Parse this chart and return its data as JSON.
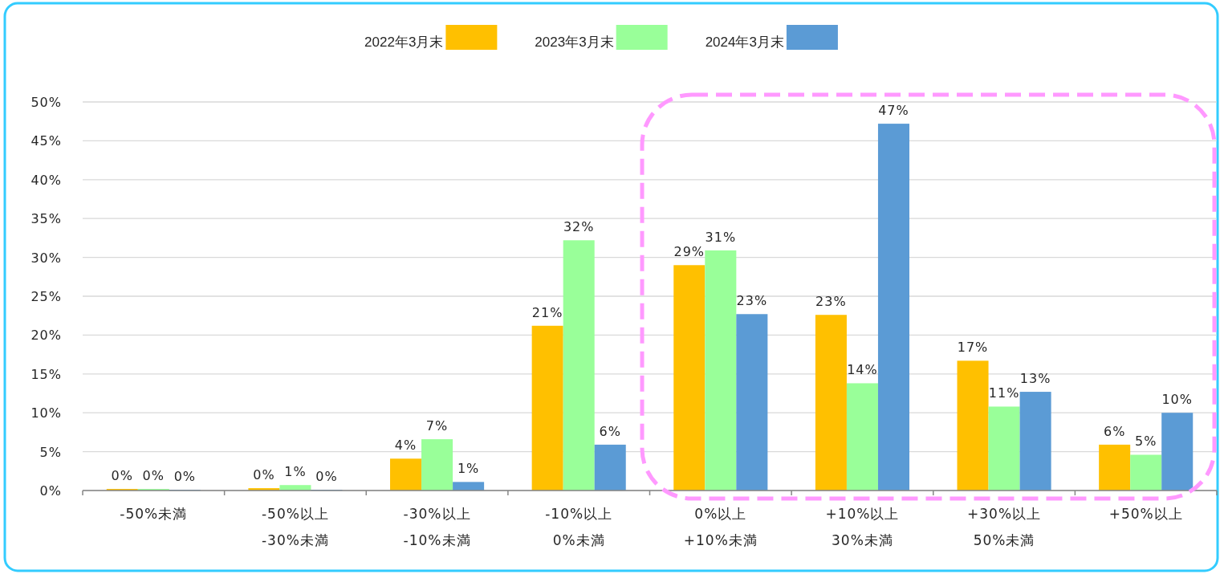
{
  "chart_data": {
    "type": "bar",
    "categories": [
      "-50%未満",
      "-50%以上 -30%未満",
      "-30%以上 -10%未満",
      "-10%以上 0%未満",
      "0%以上 +10%未満",
      "+10%以上 30%未満",
      "+30%以上 50%未満",
      "+50%以上"
    ],
    "series": [
      {
        "name": "2022年3月末",
        "color": "#ffc000",
        "values": [
          0.2,
          0.3,
          4.1,
          21.2,
          29.0,
          22.6,
          16.7,
          5.9
        ],
        "value_labels": [
          "0%",
          "0%",
          "4%",
          "21%",
          "29%",
          "23%",
          "17%",
          "6%"
        ]
      },
      {
        "name": "2023年3月末",
        "color": "#99ff99",
        "values": [
          0.2,
          0.7,
          6.6,
          32.2,
          30.9,
          13.8,
          10.8,
          4.6
        ],
        "value_labels": [
          "0%",
          "1%",
          "7%",
          "32%",
          "31%",
          "14%",
          "11%",
          "5%"
        ]
      },
      {
        "name": "2024年3月末",
        "color": "#5b9bd5",
        "values": [
          0.1,
          0.1,
          1.1,
          5.9,
          22.7,
          47.2,
          12.7,
          10.0
        ],
        "value_labels": [
          "0%",
          "0%",
          "1%",
          "6%",
          "23%",
          "47%",
          "13%",
          "10%"
        ]
      }
    ],
    "ylim": [
      0,
      50
    ],
    "yticks": [
      {
        "value": 0,
        "label": "0%"
      },
      {
        "value": 5,
        "label": "5%"
      },
      {
        "value": 10,
        "label": "10%"
      },
      {
        "value": 15,
        "label": "15%"
      },
      {
        "value": 20,
        "label": "20%"
      },
      {
        "value": 25,
        "label": "25%"
      },
      {
        "value": 30,
        "label": "30%"
      },
      {
        "value": 35,
        "label": "35%"
      },
      {
        "value": 40,
        "label": "40%"
      },
      {
        "value": 45,
        "label": "45%"
      },
      {
        "value": 50,
        "label": "50%"
      }
    ],
    "grid": "y",
    "legend": "top"
  }
}
